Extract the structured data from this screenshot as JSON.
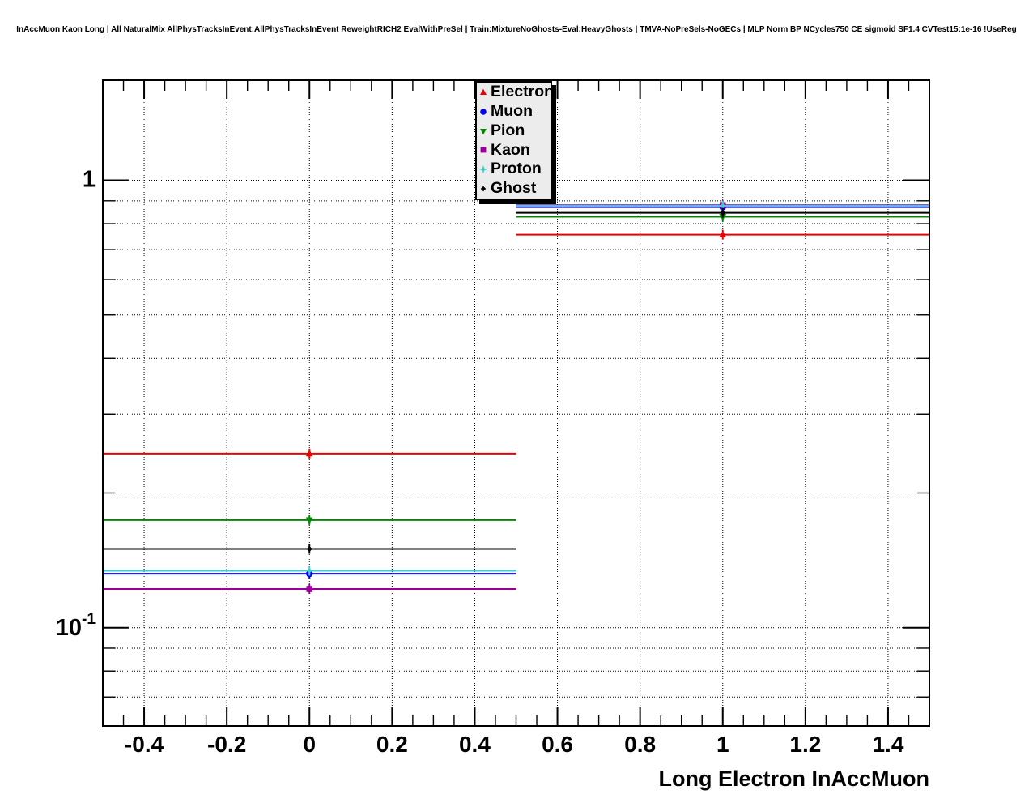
{
  "page_title": "InAccMuon Kaon Long | All NaturalMix AllPhysTracksInEvent:AllPhysTracksInEvent ReweightRICH2 EvalWithPreSel | Train:MixtureNoGhosts-Eval:HeavyGhosts | TMVA-NoPreSels-NoGECs | MLP Norm BP NCycles750 CE sigmoid SF1.4 CVTest15:1e-16 !UseReg",
  "chart_data": {
    "type": "line",
    "title": "",
    "xlabel": "Long Electron InAccMuon",
    "ylabel": "",
    "y_scale": "log",
    "grid": true,
    "legend_position": "top-center",
    "x_range": [
      -0.5,
      1.5
    ],
    "y_range": [
      0.0603,
      1.674
    ],
    "bin_edges": [
      -0.5,
      0.5,
      1.5
    ],
    "bin_centers": [
      0,
      1
    ],
    "x_major_ticks": [
      -0.4,
      -0.2,
      0,
      0.2,
      0.4,
      0.6,
      0.8,
      1,
      1.2,
      1.4
    ],
    "x_tick_labels": [
      "-0.4",
      "-0.2",
      "0",
      "0.2",
      "0.4",
      "0.6",
      "0.8",
      "1",
      "1.2",
      "1.4"
    ],
    "x_minor_tick_step": 0.05,
    "y_tick_labels": [
      {
        "value": 1,
        "base": "1",
        "exp": ""
      },
      {
        "value": 0.1,
        "base": "10",
        "exp": "-1"
      }
    ],
    "y_grid_values": [
      1,
      0.9,
      0.8,
      0.7,
      0.6,
      0.5,
      0.4,
      0.3,
      0.2,
      0.1,
      0.09,
      0.08,
      0.07
    ],
    "y_major_values": [
      1,
      0.1
    ],
    "series": [
      {
        "name": "Electron",
        "marker": "triangle-up",
        "color": "#ee0000",
        "values": [
          0.245,
          0.756
        ]
      },
      {
        "name": "Muon",
        "marker": "circle",
        "color": "#0000ee",
        "values": [
          0.132,
          0.871
        ]
      },
      {
        "name": "Pion",
        "marker": "triangle-down",
        "color": "#008800",
        "values": [
          0.174,
          0.829
        ]
      },
      {
        "name": "Kaon",
        "marker": "square",
        "color": "#990099",
        "values": [
          0.122,
          0.88
        ]
      },
      {
        "name": "Proton",
        "marker": "star4",
        "color": "#44cccc",
        "values": [
          0.134,
          0.877
        ]
      },
      {
        "name": "Ghost",
        "marker": "diamond",
        "color": "#000000",
        "values": [
          0.15,
          0.846
        ]
      }
    ]
  }
}
